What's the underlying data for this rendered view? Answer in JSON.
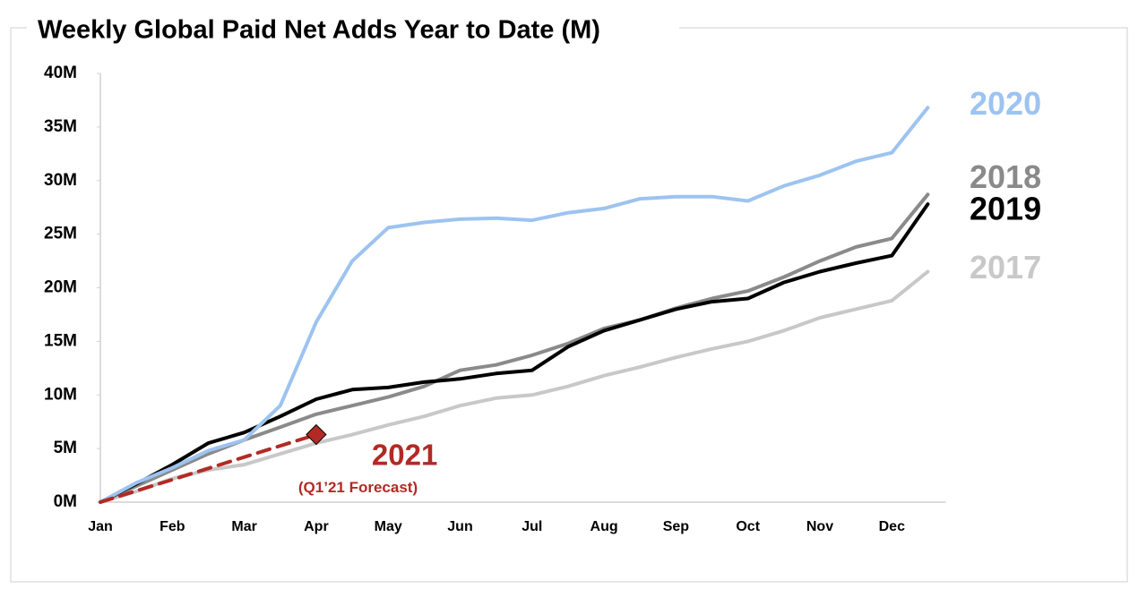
{
  "chart_data": {
    "type": "line",
    "title": "Weekly Global Paid Net Adds Year to Date (M)",
    "categories": [
      "Jan",
      null,
      "Feb",
      null,
      "Mar",
      null,
      "Apr",
      null,
      "May",
      null,
      "Jun",
      null,
      "Jul",
      null,
      "Aug",
      null,
      "Sep",
      null,
      "Oct",
      null,
      "Nov",
      null,
      "Dec",
      null
    ],
    "ylim": [
      0,
      40
    ],
    "yticks": [
      {
        "value": 0,
        "label": "0M"
      },
      {
        "value": 5,
        "label": "5M"
      },
      {
        "value": 10,
        "label": "10M"
      },
      {
        "value": 15,
        "label": "15M"
      },
      {
        "value": 20,
        "label": "20M"
      },
      {
        "value": 25,
        "label": "25M"
      },
      {
        "value": 30,
        "label": "30M"
      },
      {
        "value": 35,
        "label": "35M"
      },
      {
        "value": 40,
        "label": "40M"
      }
    ],
    "grid": false,
    "series": [
      {
        "name": "2017",
        "color": "#c8c8c8",
        "values": [
          0,
          1,
          2.2,
          3,
          3.5,
          4.5,
          5.5,
          6.3,
          7.2,
          8,
          9,
          9.7,
          10,
          10.8,
          11.8,
          12.6,
          13.5,
          14.3,
          15,
          16,
          17.2,
          18,
          18.8,
          21.5
        ]
      },
      {
        "name": "2018",
        "color": "#8a8a8a",
        "values": [
          0,
          1.5,
          3,
          4.5,
          5.8,
          7,
          8.2,
          9,
          9.8,
          10.8,
          12.3,
          12.8,
          13.7,
          14.8,
          16.2,
          17,
          18.1,
          19,
          19.7,
          21,
          22.5,
          23.8,
          24.6,
          28.7
        ]
      },
      {
        "name": "2019",
        "color": "#000000",
        "values": [
          0,
          1.7,
          3.5,
          5.5,
          6.5,
          8,
          9.6,
          10.5,
          10.7,
          11.2,
          11.5,
          12,
          12.3,
          14.5,
          16,
          17,
          18,
          18.7,
          19,
          20.5,
          21.5,
          22.3,
          23,
          27.8
        ]
      },
      {
        "name": "2020",
        "color": "#9dc3f0",
        "values": [
          0,
          1.8,
          3.2,
          4.8,
          5.8,
          9,
          16.8,
          22.5,
          25.6,
          26.1,
          26.4,
          26.5,
          26.3,
          27,
          27.4,
          28.3,
          28.5,
          28.5,
          28.1,
          29.5,
          30.5,
          31.8,
          32.6,
          36.8
        ]
      },
      {
        "name": "2021",
        "color": "#b22a25",
        "dashed": true,
        "marker": "diamond",
        "sublabel": "(Q1’21 Forecast)",
        "values": [
          0,
          1.05,
          2.1,
          3.15,
          4.2,
          5.25,
          6.3,
          null,
          null,
          null,
          null,
          null,
          null,
          null,
          null,
          null,
          null,
          null,
          null,
          null,
          null,
          null,
          null,
          null
        ]
      }
    ]
  }
}
